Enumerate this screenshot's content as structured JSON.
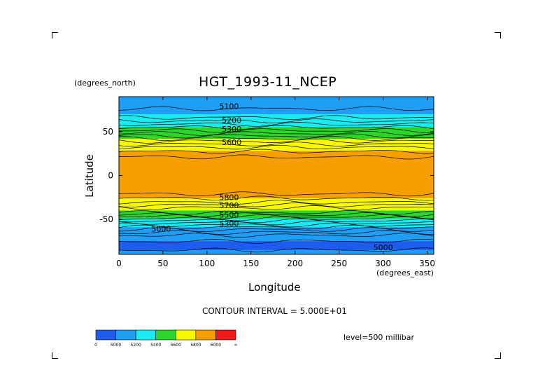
{
  "chart_data": {
    "type": "heatmap",
    "title": "HGT_1993-11_NCEP",
    "xlabel": "Longitude",
    "ylabel": "Latitude",
    "x_unit": "(degrees_east)",
    "y_unit": "(degrees_north)",
    "xlim": [
      0,
      357.5
    ],
    "ylim": [
      -90,
      90
    ],
    "x_ticks": [
      "0",
      "50",
      "100",
      "150",
      "200",
      "250",
      "300",
      "350"
    ],
    "y_ticks": [
      "50",
      "0",
      "-50"
    ],
    "x_tick_values": [
      0,
      50,
      100,
      150,
      200,
      250,
      300,
      350
    ],
    "y_tick_values": [
      50,
      0,
      -50
    ],
    "contour_interval_text": "CONTOUR INTERVAL = 5.000E+01",
    "level_text": "level=500 millibar",
    "contour_labels": [
      {
        "text": "5100",
        "lon": 125,
        "lat": 76
      },
      {
        "text": "5200",
        "lon": 128,
        "lat": 60
      },
      {
        "text": "5300",
        "lon": 128,
        "lat": 50
      },
      {
        "text": "5600",
        "lon": 128,
        "lat": 35
      },
      {
        "text": "5800",
        "lon": 125,
        "lat": -28
      },
      {
        "text": "5700",
        "lon": 125,
        "lat": -37
      },
      {
        "text": "5500",
        "lon": 125,
        "lat": -48
      },
      {
        "text": "5300",
        "lon": 125,
        "lat": -58
      },
      {
        "text": "5000",
        "lon": 48,
        "lat": -64
      },
      {
        "text": "5000",
        "lon": 300,
        "lat": -85
      }
    ],
    "bands": [
      {
        "lat": 90,
        "value": 5150
      },
      {
        "lat": 80,
        "value": 5120
      },
      {
        "lat": 70,
        "value": 5200
      },
      {
        "lat": 60,
        "value": 5330
      },
      {
        "lat": 50,
        "value": 5470
      },
      {
        "lat": 40,
        "value": 5640
      },
      {
        "lat": 30,
        "value": 5780
      },
      {
        "lat": 20,
        "value": 5860
      },
      {
        "lat": 10,
        "value": 5880
      },
      {
        "lat": 0,
        "value": 5880
      },
      {
        "lat": -10,
        "value": 5880
      },
      {
        "lat": -20,
        "value": 5860
      },
      {
        "lat": -30,
        "value": 5760
      },
      {
        "lat": -40,
        "value": 5600
      },
      {
        "lat": -50,
        "value": 5380
      },
      {
        "lat": -60,
        "value": 5180
      },
      {
        "lat": -70,
        "value": 5020
      },
      {
        "lat": -80,
        "value": 4980
      },
      {
        "lat": -90,
        "value": 5020
      }
    ],
    "color_levels": [
      {
        "label": "0",
        "color": "#1e5cf0"
      },
      {
        "label": "5000",
        "color": "#1e9ef5"
      },
      {
        "label": "5200",
        "color": "#19ecf0"
      },
      {
        "label": "5400",
        "color": "#2bd62b"
      },
      {
        "label": "5600",
        "color": "#f8f800"
      },
      {
        "label": "5800",
        "color": "#f5a000"
      },
      {
        "label": "6000",
        "color": "#f01a1a"
      },
      {
        "label": "∞",
        "color": "#f01a1a"
      }
    ],
    "grid": false,
    "legend": "bottom-left"
  }
}
